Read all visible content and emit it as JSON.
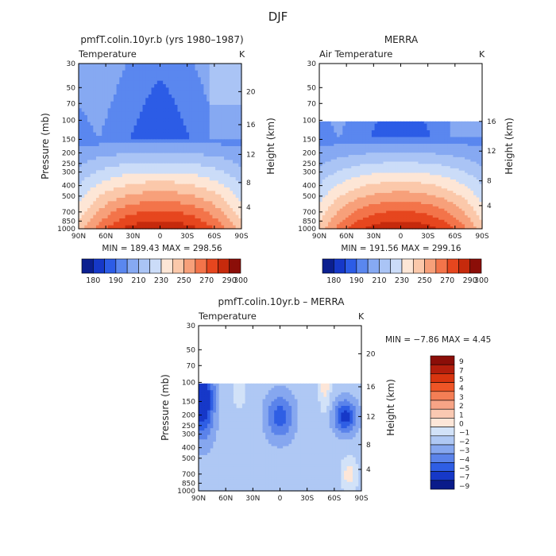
{
  "figure_title": "DJF",
  "colors": {
    "deep_blue": "#0a1a8c",
    "blue": "#2a5de0",
    "light_blue": "#c9dcf8",
    "peach": "#fbd9c2",
    "red": "#e8401c",
    "dark_red": "#8b0a0a"
  },
  "chart_data": [
    {
      "type": "heatmap",
      "title": "pmfT.colin.10yr.b (yrs 1980–1987)",
      "field_label": "Temperature",
      "unit_label": "K",
      "ylabel": "Pressure (mb)",
      "ylabel_right": "Height (km)",
      "x_ticks": [
        "90N",
        "60N",
        "30N",
        "0",
        "30S",
        "60S",
        "90S"
      ],
      "y_ticks": [
        "30",
        "50",
        "70",
        "100",
        "150",
        "200",
        "250",
        "300",
        "400",
        "500",
        "700",
        "850",
        "1000"
      ],
      "y_right_ticks": [
        "20",
        "16",
        "12",
        "8",
        "4"
      ],
      "stats": "MIN = 189.43   MAX = 298.56",
      "colorbar_labels": [
        "180",
        "190",
        "210",
        "230",
        "250",
        "270",
        "290",
        "300"
      ],
      "colorbar_levels": 14
    },
    {
      "type": "heatmap",
      "title": "MERRA",
      "field_label": "Air Temperature",
      "unit_label": "K",
      "ylabel_right": "Height (km)",
      "x_ticks": [
        "90N",
        "60N",
        "30N",
        "0",
        "30S",
        "60S",
        "90S"
      ],
      "y_ticks": [
        "30",
        "50",
        "70",
        "100",
        "150",
        "200",
        "250",
        "300",
        "400",
        "500",
        "700",
        "850",
        "1000"
      ],
      "y_right_ticks": [
        "16",
        "12",
        "8",
        "4"
      ],
      "stats": "MIN = 191.56   MAX = 299.16",
      "colorbar_labels": [
        "180",
        "190",
        "210",
        "230",
        "250",
        "270",
        "290",
        "300"
      ],
      "colorbar_levels": 14,
      "data_top_mb": 100
    },
    {
      "type": "heatmap",
      "title": "pmfT.colin.10yr.b – MERRA",
      "field_label": "Temperature",
      "unit_label": "K",
      "ylabel": "Pressure (mb)",
      "ylabel_right": "Height (km)",
      "x_ticks": [
        "90N",
        "60N",
        "30N",
        "0",
        "30S",
        "60S",
        "90S"
      ],
      "y_ticks": [
        "30",
        "50",
        "70",
        "100",
        "150",
        "200",
        "250",
        "300",
        "400",
        "500",
        "700",
        "850",
        "1000"
      ],
      "y_right_ticks": [
        "20",
        "16",
        "12",
        "8",
        "4"
      ],
      "stats": "MIN =  −7.86   MAX =   4.45",
      "colorbar_labels": [
        "9",
        "7",
        "5",
        "4",
        "3",
        "2",
        "1",
        "0",
        "−1",
        "−2",
        "−3",
        "−4",
        "−5",
        "−7",
        "−9"
      ],
      "colorbar_levels": 15,
      "data_top_mb": 100
    }
  ]
}
